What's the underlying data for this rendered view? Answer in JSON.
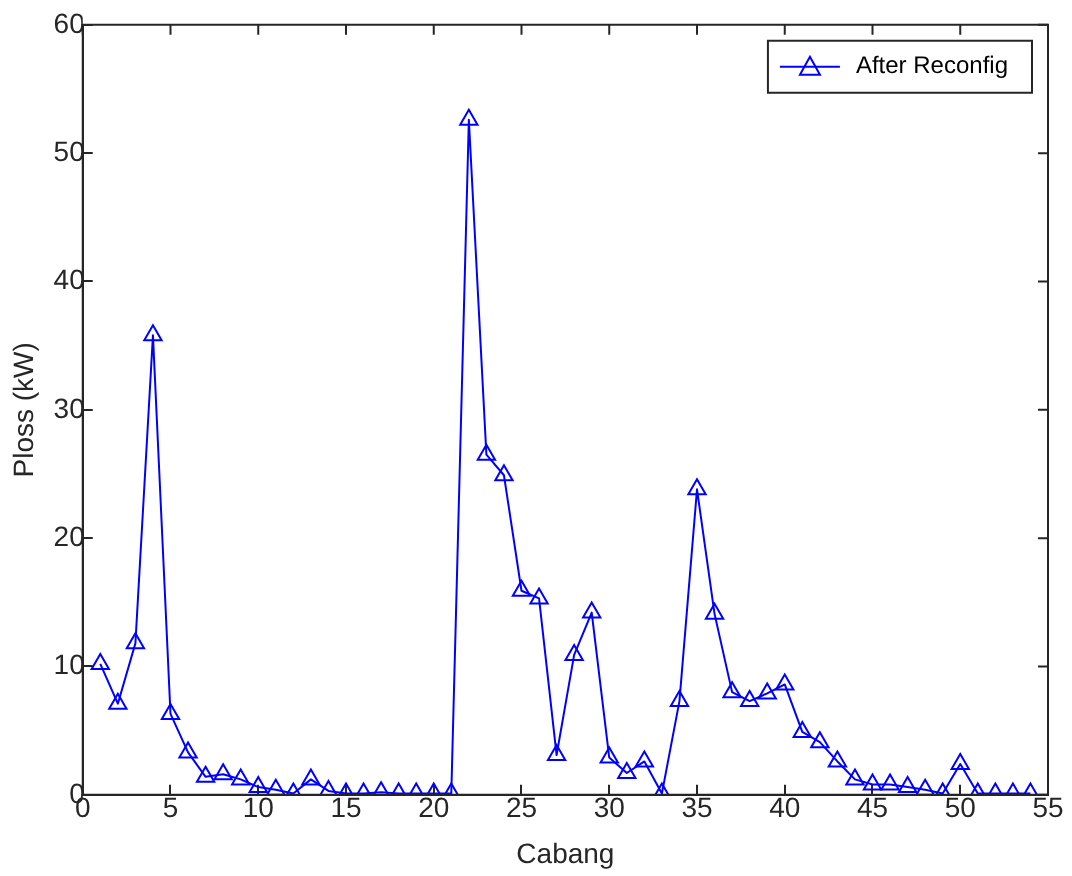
{
  "chart_data": {
    "type": "line",
    "xlabel": "Cabang",
    "ylabel": "Ploss (kW)",
    "x": [
      1,
      2,
      3,
      4,
      5,
      6,
      7,
      8,
      9,
      10,
      11,
      12,
      13,
      14,
      15,
      16,
      17,
      18,
      19,
      20,
      21,
      22,
      23,
      24,
      25,
      26,
      27,
      28,
      29,
      30,
      31,
      32,
      33,
      34,
      35,
      36,
      37,
      38,
      39,
      40,
      41,
      42,
      43,
      44,
      45,
      46,
      47,
      48,
      49,
      50,
      51,
      52,
      53,
      54
    ],
    "series": [
      {
        "name": "After Reconfig",
        "color": "#0000ff",
        "values": [
          10.2,
          7.1,
          11.8,
          35.8,
          6.3,
          3.3,
          1.4,
          1.6,
          1.2,
          0.6,
          0.4,
          0.1,
          1.2,
          0.3,
          0.1,
          0.1,
          0.2,
          0.1,
          0.1,
          0.1,
          0.1,
          52.6,
          26.5,
          24.9,
          15.9,
          15.3,
          3.1,
          10.9,
          14.2,
          2.9,
          1.7,
          2.6,
          0.1,
          7.3,
          23.8,
          14.1,
          8.0,
          7.3,
          7.9,
          8.6,
          4.9,
          4.1,
          2.6,
          1.2,
          0.8,
          0.8,
          0.6,
          0.4,
          0.1,
          2.4,
          0.1,
          0.1,
          0.1,
          0.1
        ]
      }
    ],
    "xlim": [
      0,
      55
    ],
    "xticks": [
      0,
      5,
      10,
      15,
      20,
      25,
      30,
      35,
      40,
      45,
      50,
      55
    ],
    "ylim": [
      0,
      60
    ],
    "yticks": [
      0,
      10,
      20,
      30,
      40,
      50,
      60
    ],
    "grid": false,
    "legend": "top right",
    "marker": "triangle",
    "line_style": "solid"
  }
}
